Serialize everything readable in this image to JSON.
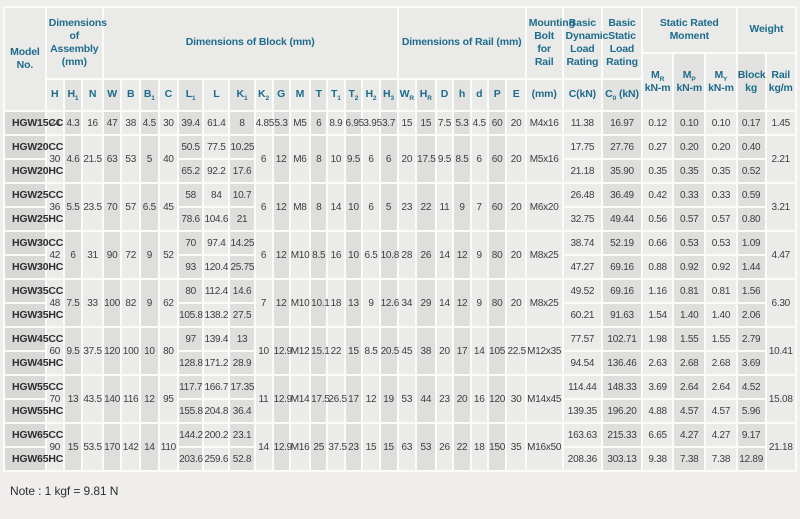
{
  "note": "Note : 1 kgf = 9.81 N",
  "colors": {
    "page_bg": "#efeeec",
    "accent_teal": "#1e6b8c",
    "cell_light": "#ebecea",
    "cell_dark": "#dedfdd",
    "model_cell_bg": "#d8d9d7",
    "header_bg": "#eaebe9",
    "gap_white": "#fbfbfa",
    "data_text": "#3d3d3d"
  },
  "header": {
    "groups": [
      {
        "label": "Model No.",
        "span": 1
      },
      {
        "label": "Dimensions of Assembly (mm)",
        "span": 3
      },
      {
        "label": "Dimensions of Block (mm)",
        "span": 15
      },
      {
        "label": "Dimensions of Rail (mm)",
        "span": 7
      },
      {
        "label": "Mounting Bolt for Rail",
        "span": 1
      },
      {
        "label": "Basic Dynamic Load Rating",
        "span": 1
      },
      {
        "label": "Basic Static Load Rating",
        "span": 1
      },
      {
        "label": "Static Rated Moment",
        "span": 3
      },
      {
        "label": "Weight",
        "span": 2
      }
    ],
    "subs": [
      "H",
      "H_{1}",
      "N",
      "W",
      "B",
      "B_{1}",
      "C",
      "L_{1}",
      "L",
      "K_{1}",
      "K_{2}",
      "G",
      "M",
      "T",
      "T_{1}",
      "T_{2}",
      "H_{2}",
      "H_{3}",
      "W_{R}",
      "H_{R}",
      "D",
      "h",
      "d",
      "P",
      "E",
      "(mm)",
      "C(kN)",
      "C_{0} (kN)"
    ],
    "subs2": [
      [
        "M_{R}",
        "kN-m"
      ],
      [
        "M_{P}",
        "kN-m"
      ],
      [
        "M_{Y}",
        "kN-m"
      ],
      [
        "Block",
        "kg"
      ],
      [
        "Rail",
        "kg/m"
      ]
    ]
  },
  "groups": [
    {
      "models": [
        "HGW15CC"
      ],
      "assembly": [
        "24",
        "4.3",
        "16"
      ],
      "block_shared": [
        "47",
        "38",
        "4.5",
        "30"
      ],
      "block_rows": [
        [
          "39.4",
          "61.4",
          "8"
        ]
      ],
      "block_shared2": [
        "4.85",
        "5.3",
        "M5",
        "6",
        "8.9",
        "6.95",
        "3.95",
        "3.7"
      ],
      "rail": [
        "15",
        "15",
        "7.5",
        "5.3",
        "4.5",
        "60",
        "20"
      ],
      "bolt": "M4x16",
      "load_rows": [
        [
          "11.38",
          "16.97",
          "0.12",
          "0.10",
          "0.10",
          "0.17"
        ]
      ],
      "rail_weight": "1.45"
    },
    {
      "models": [
        "HGW20CC",
        "HGW20HC"
      ],
      "assembly": [
        "30",
        "4.6",
        "21.5"
      ],
      "block_shared": [
        "63",
        "53",
        "5",
        "40"
      ],
      "block_rows": [
        [
          "50.5",
          "77.5",
          "10.25"
        ],
        [
          "65.2",
          "92.2",
          "17.6"
        ]
      ],
      "block_shared2": [
        "6",
        "12",
        "M6",
        "8",
        "10",
        "9.5",
        "6",
        "6"
      ],
      "rail": [
        "20",
        "17.5",
        "9.5",
        "8.5",
        "6",
        "60",
        "20"
      ],
      "bolt": "M5x16",
      "load_rows": [
        [
          "17.75",
          "27.76",
          "0.27",
          "0.20",
          "0.20",
          "0.40"
        ],
        [
          "21.18",
          "35.90",
          "0.35",
          "0.35",
          "0.35",
          "0.52"
        ]
      ],
      "rail_weight": "2.21"
    },
    {
      "models": [
        "HGW25CC",
        "HGW25HC"
      ],
      "assembly": [
        "36",
        "5.5",
        "23.5"
      ],
      "block_shared": [
        "70",
        "57",
        "6.5",
        "45"
      ],
      "block_rows": [
        [
          "58",
          "84",
          "10.7"
        ],
        [
          "78.6",
          "104.6",
          "21"
        ]
      ],
      "block_shared2": [
        "6",
        "12",
        "M8",
        "8",
        "14",
        "10",
        "6",
        "5"
      ],
      "rail": [
        "23",
        "22",
        "11",
        "9",
        "7",
        "60",
        "20"
      ],
      "bolt": "M6x20",
      "load_rows": [
        [
          "26.48",
          "36.49",
          "0.42",
          "0.33",
          "0.33",
          "0.59"
        ],
        [
          "32.75",
          "49.44",
          "0.56",
          "0.57",
          "0.57",
          "0.80"
        ]
      ],
      "rail_weight": "3.21"
    },
    {
      "models": [
        "HGW30CC",
        "HGW30HC"
      ],
      "assembly": [
        "42",
        "6",
        "31"
      ],
      "block_shared": [
        "90",
        "72",
        "9",
        "52"
      ],
      "block_rows": [
        [
          "70",
          "97.4",
          "14.25"
        ],
        [
          "93",
          "120.4",
          "25.75"
        ]
      ],
      "block_shared2": [
        "6",
        "12",
        "M10",
        "8.5",
        "16",
        "10",
        "6.5",
        "10.8"
      ],
      "rail": [
        "28",
        "26",
        "14",
        "12",
        "9",
        "80",
        "20"
      ],
      "bolt": "M8x25",
      "load_rows": [
        [
          "38.74",
          "52.19",
          "0.66",
          "0.53",
          "0.53",
          "1.09"
        ],
        [
          "47.27",
          "69.16",
          "0.88",
          "0.92",
          "0.92",
          "1.44"
        ]
      ],
      "rail_weight": "4.47"
    },
    {
      "models": [
        "HGW35CC",
        "HGW35HC"
      ],
      "assembly": [
        "48",
        "7.5",
        "33"
      ],
      "block_shared": [
        "100",
        "82",
        "9",
        "62"
      ],
      "block_rows": [
        [
          "80",
          "112.4",
          "14.6"
        ],
        [
          "105.8",
          "138.2",
          "27.5"
        ]
      ],
      "block_shared2": [
        "7",
        "12",
        "M10",
        "10.1",
        "18",
        "13",
        "9",
        "12.6"
      ],
      "rail": [
        "34",
        "29",
        "14",
        "12",
        "9",
        "80",
        "20"
      ],
      "bolt": "M8x25",
      "load_rows": [
        [
          "49.52",
          "69.16",
          "1.16",
          "0.81",
          "0.81",
          "1.56"
        ],
        [
          "60.21",
          "91.63",
          "1.54",
          "1.40",
          "1.40",
          "2.06"
        ]
      ],
      "rail_weight": "6.30"
    },
    {
      "models": [
        "HGW45CC",
        "HGW45HC"
      ],
      "assembly": [
        "60",
        "9.5",
        "37.5"
      ],
      "block_shared": [
        "120",
        "100",
        "10",
        "80"
      ],
      "block_rows": [
        [
          "97",
          "139.4",
          "13"
        ],
        [
          "128.8",
          "171.2",
          "28.9"
        ]
      ],
      "block_shared2": [
        "10",
        "12.9",
        "M12",
        "15.1",
        "22",
        "15",
        "8.5",
        "20.5"
      ],
      "rail": [
        "45",
        "38",
        "20",
        "17",
        "14",
        "105",
        "22.5"
      ],
      "bolt": "M12x35",
      "load_rows": [
        [
          "77.57",
          "102.71",
          "1.98",
          "1.55",
          "1.55",
          "2.79"
        ],
        [
          "94.54",
          "136.46",
          "2.63",
          "2.68",
          "2.68",
          "3.69"
        ]
      ],
      "rail_weight": "10.41"
    },
    {
      "models": [
        "HGW55CC",
        "HGW55HC"
      ],
      "assembly": [
        "70",
        "13",
        "43.5"
      ],
      "block_shared": [
        "140",
        "116",
        "12",
        "95"
      ],
      "block_rows": [
        [
          "117.7",
          "166.7",
          "17.35"
        ],
        [
          "155.8",
          "204.8",
          "36.4"
        ]
      ],
      "block_shared2": [
        "11",
        "12.9",
        "M14",
        "17.5",
        "26.5",
        "17",
        "12",
        "19"
      ],
      "rail": [
        "53",
        "44",
        "23",
        "20",
        "16",
        "120",
        "30"
      ],
      "bolt": "M14x45",
      "load_rows": [
        [
          "114.44",
          "148.33",
          "3.69",
          "2.64",
          "2.64",
          "4.52"
        ],
        [
          "139.35",
          "196.20",
          "4.88",
          "4.57",
          "4.57",
          "5.96"
        ]
      ],
      "rail_weight": "15.08"
    },
    {
      "models": [
        "HGW65CC",
        "HGW65HC"
      ],
      "assembly": [
        "90",
        "15",
        "53.5"
      ],
      "block_shared": [
        "170",
        "142",
        "14",
        "110"
      ],
      "block_rows": [
        [
          "144.2",
          "200.2",
          "23.1"
        ],
        [
          "203.6",
          "259.6",
          "52.8"
        ]
      ],
      "block_shared2": [
        "14",
        "12.9",
        "M16",
        "25",
        "37.5",
        "23",
        "15",
        "15"
      ],
      "rail": [
        "63",
        "53",
        "26",
        "22",
        "18",
        "150",
        "35"
      ],
      "bolt": "M16x50",
      "load_rows": [
        [
          "163.63",
          "215.33",
          "6.65",
          "4.27",
          "4.27",
          "9.17"
        ],
        [
          "208.36",
          "303.13",
          "9.38",
          "7.38",
          "7.38",
          "12.89"
        ]
      ],
      "rail_weight": "21.18"
    }
  ]
}
